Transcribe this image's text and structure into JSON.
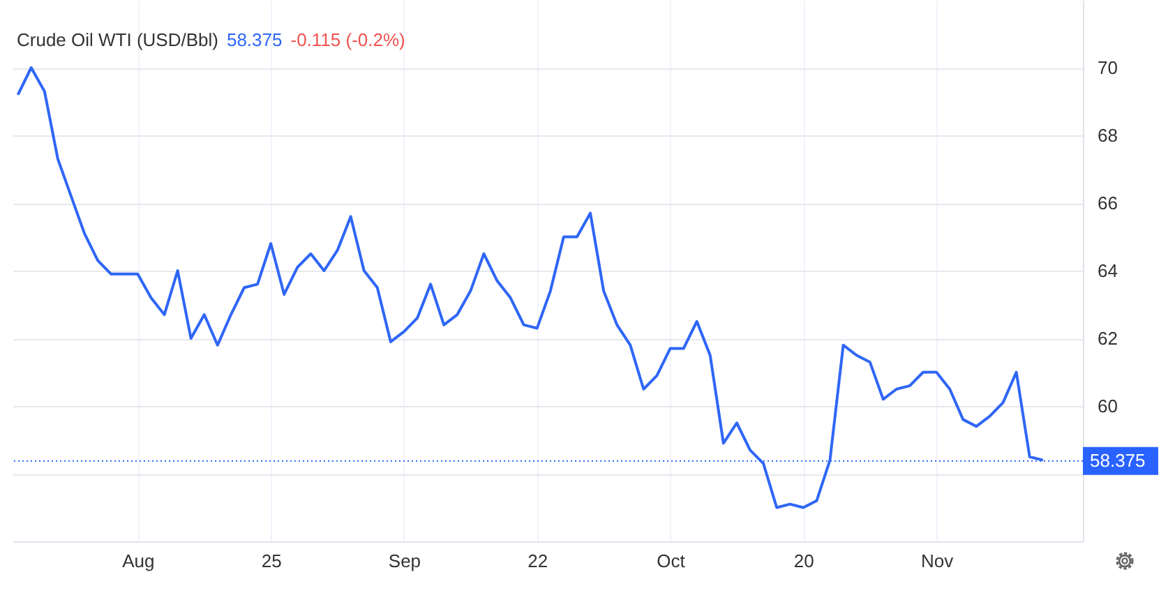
{
  "chart_data": {
    "type": "line",
    "title": "Crude Oil WTI (USD/Bbl)",
    "annotations": [
      "58.375",
      "-0.115 (-0.2%)"
    ],
    "categories": [
      null,
      null,
      null,
      null,
      null,
      null,
      null,
      null,
      null,
      "Aug",
      null,
      null,
      null,
      null,
      null,
      null,
      null,
      null,
      null,
      "25",
      null,
      null,
      null,
      null,
      null,
      null,
      null,
      null,
      null,
      "Sep",
      null,
      null,
      null,
      null,
      null,
      null,
      null,
      null,
      null,
      "22",
      null,
      null,
      null,
      null,
      null,
      null,
      null,
      null,
      null,
      "Oct",
      null,
      null,
      null,
      null,
      null,
      null,
      null,
      null,
      null,
      "20",
      null,
      null,
      null,
      null,
      null,
      null,
      null,
      null,
      null,
      "Nov",
      null,
      null,
      null,
      null,
      null,
      null,
      null,
      null
    ],
    "series": [
      {
        "color": "#2f66f5",
        "values": [
          69.2,
          70.0,
          69.3,
          67.3,
          66.2,
          65.1,
          64.3,
          63.9,
          63.9,
          63.9,
          63.2,
          62.7,
          64.0,
          62.0,
          62.7,
          61.8,
          62.7,
          63.5,
          63.6,
          64.8,
          63.3,
          64.1,
          64.5,
          64.0,
          64.6,
          65.6,
          64.0,
          63.5,
          61.9,
          62.2,
          62.6,
          63.6,
          62.4,
          62.7,
          63.4,
          64.5,
          63.7,
          63.2,
          62.4,
          62.3,
          63.4,
          65.0,
          65.0,
          65.7,
          63.4,
          62.4,
          61.8,
          60.5,
          60.9,
          61.7,
          61.7,
          62.5,
          61.5,
          58.9,
          59.5,
          58.7,
          58.3,
          57.0,
          57.1,
          57.0,
          57.2,
          58.4,
          61.8,
          61.5,
          61.3,
          60.2,
          60.5,
          60.6,
          61.0,
          61.0,
          60.5,
          59.6,
          59.4,
          59.7,
          60.1,
          61.0,
          58.5,
          58.4
        ]
      }
    ],
    "ylim": [
      56,
      72
    ],
    "yticks": [
      {
        "value": 56,
        "label": null
      },
      {
        "value": 58,
        "label": null
      },
      60,
      62,
      64,
      66,
      68,
      70
    ],
    "ref_lines": [
      {
        "axis": "y",
        "value": 58.375,
        "label": "58.375",
        "color": "#2962ff",
        "line_style": "dotted"
      }
    ],
    "grid": true,
    "marker": "none",
    "line_style": "solid"
  }
}
